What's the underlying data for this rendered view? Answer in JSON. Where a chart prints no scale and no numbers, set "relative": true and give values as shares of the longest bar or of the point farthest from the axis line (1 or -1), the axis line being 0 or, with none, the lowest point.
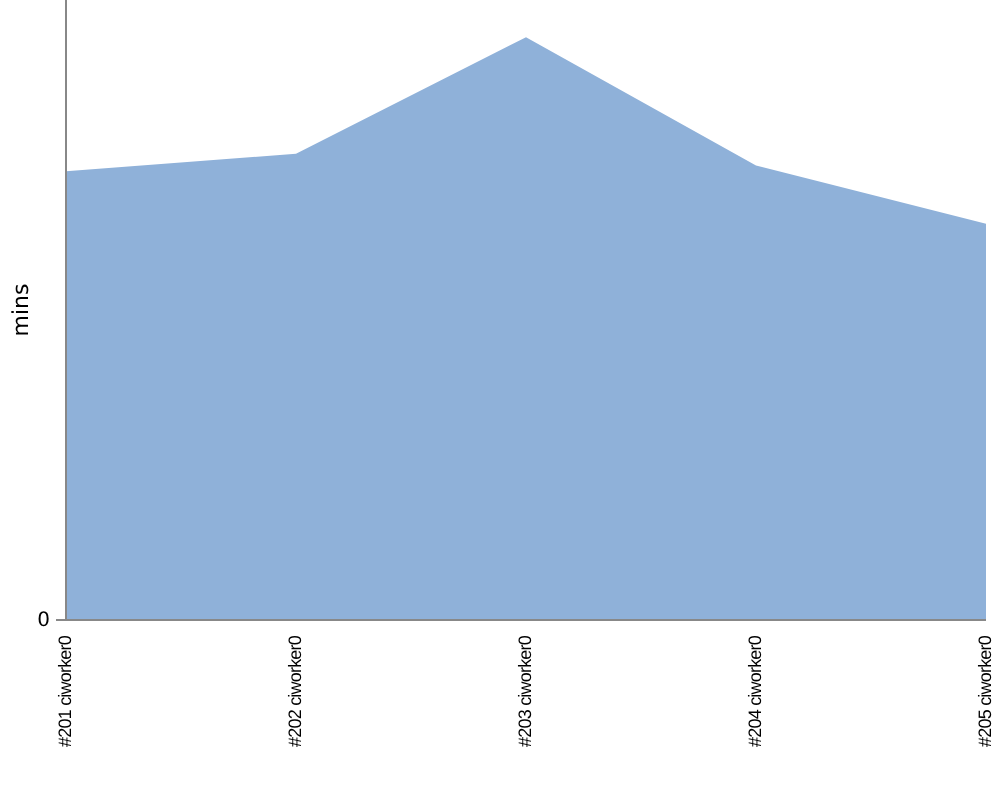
{
  "chart_data": {
    "type": "area",
    "ylabel": "mins",
    "relative": true,
    "annotations": [
      "0"
    ],
    "categories": [
      "#201 ciworker0",
      "#202 ciworker0",
      "#203 ciworker0",
      "#204 ciworker0",
      "#205 ciworker0"
    ],
    "series": [
      {
        "color": "#8fb1d9",
        "values": [
          0.77,
          0.8,
          1,
          0.78,
          0.68
        ]
      }
    ]
  }
}
